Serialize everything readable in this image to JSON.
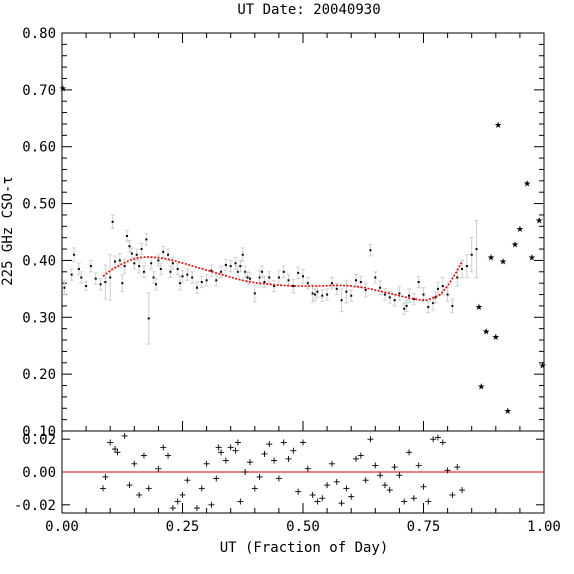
{
  "chart_data": [
    {
      "type": "scatter",
      "title": "UT Date: 20040930",
      "ylabel": "225 GHz CSO-τ",
      "xlabel": "",
      "xlim": [
        0.0,
        1.0
      ],
      "ylim": [
        0.1,
        0.8
      ],
      "yticks": [
        "0.10",
        "0.20",
        "0.30",
        "0.40",
        "0.50",
        "0.60",
        "0.70",
        "0.80"
      ],
      "fit_line_color": "#e00000",
      "points": [
        [
          0.005,
          0.352,
          0.012
        ],
        [
          0.02,
          0.375,
          0.01
        ],
        [
          0.025,
          0.41,
          0.012
        ],
        [
          0.035,
          0.385,
          0.01
        ],
        [
          0.04,
          0.37,
          0.01
        ],
        [
          0.05,
          0.355,
          0.008
        ],
        [
          0.06,
          0.39,
          0.01
        ],
        [
          0.07,
          0.368,
          0.01
        ],
        [
          0.08,
          0.358,
          0.01
        ],
        [
          0.09,
          0.362,
          0.03
        ],
        [
          0.1,
          0.37,
          0.04
        ],
        [
          0.105,
          0.468,
          0.012
        ],
        [
          0.11,
          0.398,
          0.01
        ],
        [
          0.12,
          0.4,
          0.012
        ],
        [
          0.125,
          0.36,
          0.015
        ],
        [
          0.13,
          0.39,
          0.012
        ],
        [
          0.135,
          0.443,
          0.01
        ],
        [
          0.14,
          0.425,
          0.01
        ],
        [
          0.145,
          0.412,
          0.01
        ],
        [
          0.15,
          0.395,
          0.01
        ],
        [
          0.155,
          0.41,
          0.01
        ],
        [
          0.16,
          0.39,
          0.012
        ],
        [
          0.165,
          0.42,
          0.01
        ],
        [
          0.17,
          0.38,
          0.01
        ],
        [
          0.175,
          0.437,
          0.01
        ],
        [
          0.18,
          0.298,
          0.045
        ],
        [
          0.185,
          0.395,
          0.01
        ],
        [
          0.19,
          0.37,
          0.01
        ],
        [
          0.195,
          0.358,
          0.01
        ],
        [
          0.2,
          0.4,
          0.01
        ],
        [
          0.205,
          0.385,
          0.01
        ],
        [
          0.21,
          0.415,
          0.01
        ],
        [
          0.22,
          0.41,
          0.01
        ],
        [
          0.225,
          0.38,
          0.01
        ],
        [
          0.23,
          0.395,
          0.01
        ],
        [
          0.24,
          0.385,
          0.01
        ],
        [
          0.245,
          0.36,
          0.012
        ],
        [
          0.25,
          0.372,
          0.01
        ],
        [
          0.26,
          0.375,
          0.01
        ],
        [
          0.27,
          0.37,
          0.01
        ],
        [
          0.28,
          0.352,
          0.01
        ],
        [
          0.29,
          0.362,
          0.01
        ],
        [
          0.3,
          0.365,
          0.01
        ],
        [
          0.31,
          0.382,
          0.01
        ],
        [
          0.32,
          0.365,
          0.01
        ],
        [
          0.33,
          0.38,
          0.01
        ],
        [
          0.34,
          0.392,
          0.01
        ],
        [
          0.35,
          0.39,
          0.01
        ],
        [
          0.36,
          0.395,
          0.01
        ],
        [
          0.365,
          0.38,
          0.01
        ],
        [
          0.37,
          0.39,
          0.01
        ],
        [
          0.375,
          0.41,
          0.012
        ],
        [
          0.38,
          0.38,
          0.01
        ],
        [
          0.385,
          0.37,
          0.01
        ],
        [
          0.39,
          0.368,
          0.01
        ],
        [
          0.4,
          0.342,
          0.015
        ],
        [
          0.41,
          0.37,
          0.012
        ],
        [
          0.415,
          0.38,
          0.01
        ],
        [
          0.42,
          0.362,
          0.01
        ],
        [
          0.43,
          0.37,
          0.01
        ],
        [
          0.44,
          0.355,
          0.01
        ],
        [
          0.45,
          0.37,
          0.012
        ],
        [
          0.46,
          0.38,
          0.01
        ],
        [
          0.47,
          0.365,
          0.01
        ],
        [
          0.48,
          0.355,
          0.012
        ],
        [
          0.49,
          0.378,
          0.01
        ],
        [
          0.5,
          0.372,
          0.012
        ],
        [
          0.51,
          0.36,
          0.01
        ],
        [
          0.52,
          0.342,
          0.015
        ],
        [
          0.525,
          0.34,
          0.01
        ],
        [
          0.53,
          0.345,
          0.01
        ],
        [
          0.54,
          0.338,
          0.01
        ],
        [
          0.55,
          0.34,
          0.01
        ],
        [
          0.56,
          0.36,
          0.01
        ],
        [
          0.57,
          0.35,
          0.01
        ],
        [
          0.58,
          0.33,
          0.02
        ],
        [
          0.59,
          0.345,
          0.02
        ],
        [
          0.6,
          0.338,
          0.01
        ],
        [
          0.61,
          0.365,
          0.01
        ],
        [
          0.62,
          0.362,
          0.01
        ],
        [
          0.63,
          0.348,
          0.012
        ],
        [
          0.64,
          0.418,
          0.01
        ],
        [
          0.65,
          0.37,
          0.01
        ],
        [
          0.66,
          0.352,
          0.012
        ],
        [
          0.67,
          0.34,
          0.01
        ],
        [
          0.68,
          0.335,
          0.01
        ],
        [
          0.69,
          0.33,
          0.01
        ],
        [
          0.7,
          0.342,
          0.012
        ],
        [
          0.71,
          0.315,
          0.01
        ],
        [
          0.715,
          0.32,
          0.01
        ],
        [
          0.72,
          0.338,
          0.012
        ],
        [
          0.73,
          0.332,
          0.01
        ],
        [
          0.74,
          0.362,
          0.01
        ],
        [
          0.75,
          0.34,
          0.012
        ],
        [
          0.76,
          0.318,
          0.01
        ],
        [
          0.77,
          0.325,
          0.012
        ],
        [
          0.775,
          0.335,
          0.01
        ],
        [
          0.78,
          0.35,
          0.012
        ],
        [
          0.79,
          0.355,
          0.015
        ],
        [
          0.8,
          0.34,
          0.012
        ],
        [
          0.81,
          0.32,
          0.012
        ],
        [
          0.82,
          0.37,
          0.015
        ],
        [
          0.83,
          0.385,
          0.015
        ],
        [
          0.84,
          0.39,
          0.02
        ],
        [
          0.85,
          0.41,
          0.03
        ],
        [
          0.86,
          0.42,
          0.05
        ]
      ],
      "outliers": [
        [
          0.002,
          0.702
        ],
        [
          0.865,
          0.318
        ],
        [
          0.87,
          0.178
        ],
        [
          0.88,
          0.275
        ],
        [
          0.89,
          0.405
        ],
        [
          0.9,
          0.265
        ],
        [
          0.905,
          0.638
        ],
        [
          0.915,
          0.398
        ],
        [
          0.925,
          0.135
        ],
        [
          0.94,
          0.428
        ],
        [
          0.95,
          0.455
        ],
        [
          0.965,
          0.535
        ],
        [
          0.975,
          0.405
        ],
        [
          0.99,
          0.47
        ],
        [
          0.997,
          0.215
        ]
      ],
      "fit": {
        "x": [
          0.085,
          0.1,
          0.12,
          0.14,
          0.16,
          0.18,
          0.2,
          0.22,
          0.24,
          0.26,
          0.28,
          0.3,
          0.32,
          0.34,
          0.36,
          0.38,
          0.4,
          0.42,
          0.44,
          0.46,
          0.48,
          0.5,
          0.52,
          0.54,
          0.56,
          0.58,
          0.6,
          0.62,
          0.64,
          0.66,
          0.68,
          0.7,
          0.72,
          0.74,
          0.755,
          0.77,
          0.785,
          0.8,
          0.81,
          0.82,
          0.83
        ],
        "y": [
          0.372,
          0.382,
          0.392,
          0.4,
          0.405,
          0.406,
          0.405,
          0.402,
          0.398,
          0.393,
          0.388,
          0.383,
          0.378,
          0.373,
          0.368,
          0.364,
          0.361,
          0.359,
          0.357,
          0.356,
          0.355,
          0.355,
          0.355,
          0.355,
          0.356,
          0.356,
          0.355,
          0.353,
          0.35,
          0.346,
          0.342,
          0.338,
          0.334,
          0.331,
          0.33,
          0.334,
          0.34,
          0.355,
          0.368,
          0.382,
          0.398
        ]
      }
    },
    {
      "type": "scatter",
      "title": "",
      "xlabel": "UT (Fraction of Day)",
      "ylabel": "",
      "xlim": [
        0.0,
        1.0
      ],
      "ylim": [
        -0.025,
        0.025
      ],
      "xticks": [
        "0.00",
        "0.25",
        "0.50",
        "0.75",
        "1.00"
      ],
      "yticks": [
        "-0.02",
        "0.00",
        "0.02"
      ],
      "zero_line_color": "#e00000",
      "residuals": [
        [
          0.085,
          -0.01
        ],
        [
          0.09,
          -0.003
        ],
        [
          0.1,
          0.018
        ],
        [
          0.11,
          0.014
        ],
        [
          0.115,
          0.012
        ],
        [
          0.13,
          0.022
        ],
        [
          0.14,
          -0.008
        ],
        [
          0.15,
          0.005
        ],
        [
          0.16,
          -0.014
        ],
        [
          0.17,
          0.01
        ],
        [
          0.18,
          -0.01
        ],
        [
          0.2,
          0.002
        ],
        [
          0.21,
          0.015
        ],
        [
          0.22,
          0.01
        ],
        [
          0.23,
          -0.022
        ],
        [
          0.24,
          -0.018
        ],
        [
          0.25,
          -0.014
        ],
        [
          0.26,
          -0.005
        ],
        [
          0.28,
          -0.022
        ],
        [
          0.29,
          -0.01
        ],
        [
          0.3,
          0.005
        ],
        [
          0.31,
          -0.02
        ],
        [
          0.32,
          -0.004
        ],
        [
          0.325,
          0.015
        ],
        [
          0.33,
          0.012
        ],
        [
          0.34,
          0.007
        ],
        [
          0.35,
          0.015
        ],
        [
          0.36,
          0.013
        ],
        [
          0.365,
          0.018
        ],
        [
          0.37,
          -0.018
        ],
        [
          0.38,
          0.0
        ],
        [
          0.39,
          0.006
        ],
        [
          0.4,
          -0.01
        ],
        [
          0.41,
          -0.003
        ],
        [
          0.42,
          0.011
        ],
        [
          0.43,
          0.017
        ],
        [
          0.44,
          0.007
        ],
        [
          0.45,
          -0.004
        ],
        [
          0.46,
          0.018
        ],
        [
          0.47,
          0.008
        ],
        [
          0.48,
          0.013
        ],
        [
          0.49,
          -0.012
        ],
        [
          0.5,
          0.018
        ],
        [
          0.51,
          0.002
        ],
        [
          0.52,
          -0.014
        ],
        [
          0.53,
          -0.018
        ],
        [
          0.54,
          -0.016
        ],
        [
          0.55,
          -0.008
        ],
        [
          0.56,
          0.005
        ],
        [
          0.57,
          -0.006
        ],
        [
          0.58,
          -0.019
        ],
        [
          0.59,
          -0.01
        ],
        [
          0.6,
          -0.015
        ],
        [
          0.61,
          0.008
        ],
        [
          0.62,
          0.01
        ],
        [
          0.63,
          -0.005
        ],
        [
          0.64,
          0.02
        ],
        [
          0.65,
          0.004
        ],
        [
          0.66,
          -0.002
        ],
        [
          0.67,
          -0.008
        ],
        [
          0.68,
          -0.011
        ],
        [
          0.69,
          0.003
        ],
        [
          0.7,
          -0.002
        ],
        [
          0.71,
          -0.018
        ],
        [
          0.72,
          0.012
        ],
        [
          0.73,
          -0.016
        ],
        [
          0.74,
          0.004
        ],
        [
          0.75,
          -0.009
        ],
        [
          0.76,
          -0.018
        ],
        [
          0.77,
          0.02
        ],
        [
          0.78,
          0.021
        ],
        [
          0.79,
          0.018
        ],
        [
          0.8,
          0.001
        ],
        [
          0.81,
          -0.014
        ],
        [
          0.82,
          0.003
        ],
        [
          0.83,
          -0.011
        ]
      ]
    }
  ]
}
